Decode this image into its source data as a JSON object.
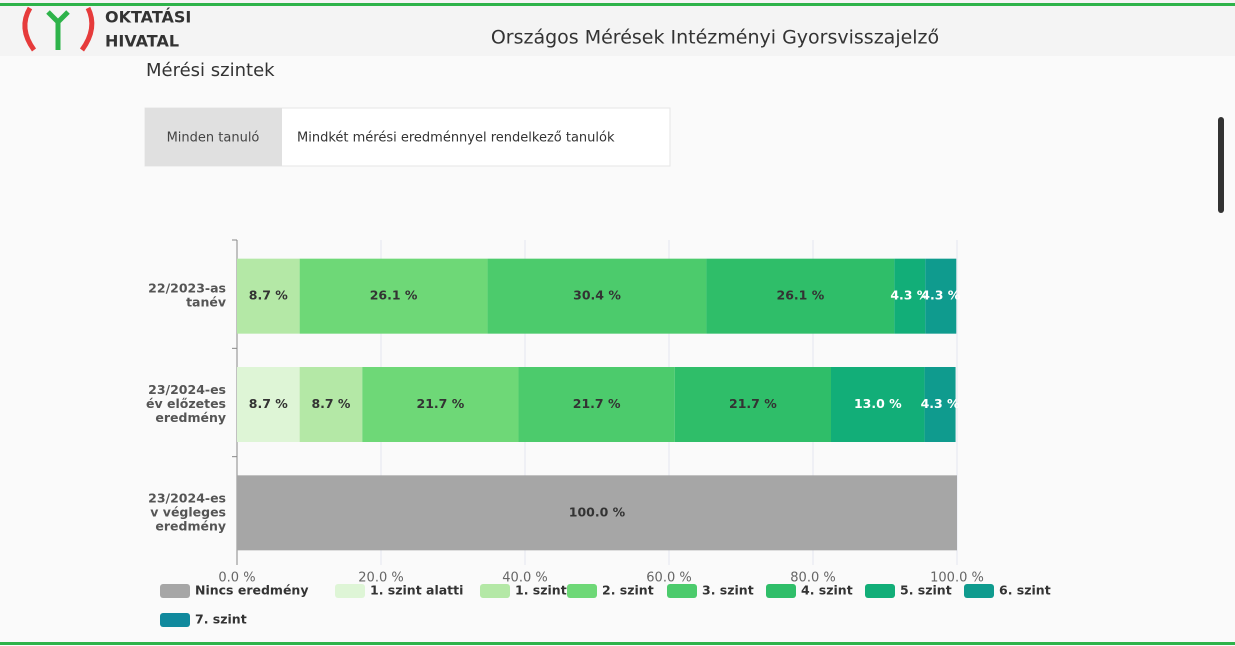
{
  "header": {
    "logo": [
      "OKTATÁSI",
      "HIVATAL"
    ],
    "title": "Országos Mérések Intézményi Gyorsvisszajelző"
  },
  "section_title": "Mérési szintek",
  "tabs": [
    "Minden tanuló",
    "Mindkét mérési eredménnyel rendelkező tanulók"
  ],
  "chart_data": {
    "type": "stacked-barh",
    "categories": [
      [
        "22/2023-as",
        "tanév"
      ],
      [
        "23/2024-es",
        "év előzetes",
        "eredmény"
      ],
      [
        "23/2024-es",
        "v végleges",
        "eredmény"
      ]
    ],
    "series": [
      {
        "name": "Nincs eredmény",
        "color": "#a6a6a6",
        "values": [
          null,
          null,
          100.0
        ],
        "value_labels": [
          null,
          null,
          "100.0 %"
        ]
      },
      {
        "name": "1. szint alatti",
        "color": "#def5d6",
        "values": [
          null,
          8.7,
          null
        ],
        "value_labels": [
          null,
          "8.7 %",
          null
        ]
      },
      {
        "name": "1. szint",
        "color": "#b4e8a6",
        "values": [
          8.7,
          8.7,
          null
        ],
        "value_labels": [
          "8.7 %",
          "8.7 %",
          null
        ]
      },
      {
        "name": "2. szint",
        "color": "#6ed877",
        "values": [
          26.1,
          21.7,
          null
        ],
        "value_labels": [
          "26.1 %",
          "21.7 %",
          null
        ]
      },
      {
        "name": "3. szint",
        "color": "#4ccb6c",
        "values": [
          30.4,
          21.7,
          null
        ],
        "value_labels": [
          "30.4 %",
          "21.7 %",
          null
        ]
      },
      {
        "name": "4. szint",
        "color": "#2fbe69",
        "values": [
          26.1,
          21.7,
          null
        ],
        "value_labels": [
          "26.1 %",
          "21.7 %",
          null
        ]
      },
      {
        "name": "5. szint",
        "color": "#12ae78",
        "values": [
          4.3,
          13.0,
          null
        ],
        "value_labels": [
          "4.3 %",
          "13.0 %",
          null
        ]
      },
      {
        "name": "6. szint",
        "color": "#0f9b8e",
        "values": [
          4.3,
          4.3,
          null
        ],
        "value_labels": [
          "4.3 %",
          "4.3 %",
          null
        ]
      },
      {
        "name": "7. szint",
        "color": "#10899d",
        "values": [
          null,
          null,
          null
        ],
        "value_labels": [
          null,
          null,
          null
        ]
      }
    ],
    "xlim": [
      0,
      100
    ],
    "xticks": [
      {
        "value": 0,
        "label": "0.0 %"
      },
      {
        "value": 20,
        "label": "20.0 %"
      },
      {
        "value": 40,
        "label": "40.0 %"
      },
      {
        "value": 60,
        "label": "60.0 %"
      },
      {
        "value": 80,
        "label": "80.0 %"
      },
      {
        "value": 100,
        "label": "100.0 %"
      }
    ],
    "grid": true,
    "legend": "bottom"
  }
}
